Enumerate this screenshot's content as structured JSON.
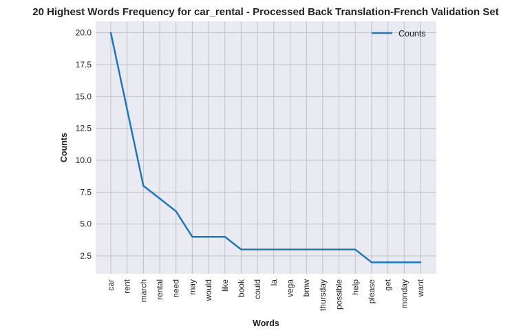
{
  "chart_data": {
    "type": "line",
    "title": "20 Highest Words Frequency for car_rental - Processed Back Translation-French Validation Set",
    "xlabel": "Words",
    "ylabel": "Counts",
    "categories": [
      "car",
      "rent",
      "march",
      "rental",
      "need",
      "may",
      "would",
      "like",
      "book",
      "could",
      "la",
      "vega",
      "bmw",
      "thursday",
      "possible",
      "help",
      "please",
      "get",
      "monday",
      "want"
    ],
    "series": [
      {
        "name": "Counts",
        "values": [
          20,
          14,
          8,
          7,
          6,
          4,
          4,
          4,
          3,
          3,
          3,
          3,
          3,
          3,
          3,
          3,
          2,
          2,
          2,
          2
        ]
      }
    ],
    "ylim": [
      1.1,
      20.9
    ],
    "yticks": [
      "2.5",
      "5.0",
      "7.5",
      "10.0",
      "12.5",
      "15.0",
      "17.5",
      "20.0"
    ],
    "grid": true,
    "legend_position": "top-right",
    "colors": {
      "line": "#1f77b4",
      "plot_bg": "#eaeaf2",
      "grid": "#c0c0c8"
    }
  }
}
